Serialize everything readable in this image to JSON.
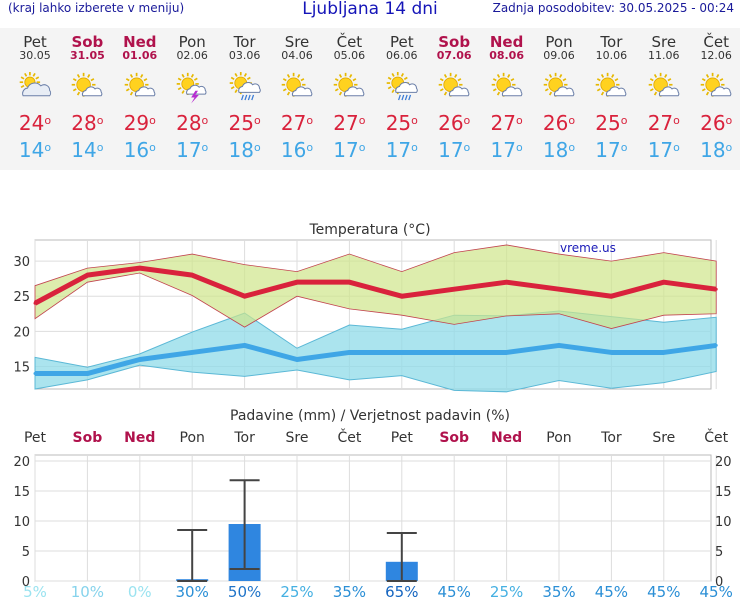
{
  "header": {
    "left_note": "(kraj lahko izberete v meniju)",
    "title": "Ljubljana 14 dni",
    "updated": "Zadnja posodobitev: 30.05.2025 - 00:24"
  },
  "days": [
    {
      "name": "Pet",
      "date": "30.05",
      "weekend": false,
      "icon": "partly-cloudy-icon",
      "max": "24",
      "min": "14"
    },
    {
      "name": "Sob",
      "date": "31.05",
      "weekend": true,
      "icon": "sun-cloud-icon",
      "max": "28",
      "min": "14"
    },
    {
      "name": "Ned",
      "date": "01.06",
      "weekend": true,
      "icon": "sun-cloud-icon",
      "max": "29",
      "min": "16"
    },
    {
      "name": "Pon",
      "date": "02.06",
      "weekend": false,
      "icon": "thunderstorm-icon",
      "max": "28",
      "min": "17"
    },
    {
      "name": "Tor",
      "date": "03.06",
      "weekend": false,
      "icon": "sun-rain-icon",
      "max": "25",
      "min": "18"
    },
    {
      "name": "Sre",
      "date": "04.06",
      "weekend": false,
      "icon": "sun-cloud-icon",
      "max": "27",
      "min": "16"
    },
    {
      "name": "Čet",
      "date": "05.06",
      "weekend": false,
      "icon": "sun-cloud-icon",
      "max": "27",
      "min": "17"
    },
    {
      "name": "Pet",
      "date": "06.06",
      "weekend": false,
      "icon": "sun-rain-icon",
      "max": "25",
      "min": "17"
    },
    {
      "name": "Sob",
      "date": "07.06",
      "weekend": true,
      "icon": "sun-cloud-icon",
      "max": "26",
      "min": "17"
    },
    {
      "name": "Ned",
      "date": "08.06",
      "weekend": true,
      "icon": "sun-cloud-icon",
      "max": "27",
      "min": "17"
    },
    {
      "name": "Pon",
      "date": "09.06",
      "weekend": false,
      "icon": "sun-cloud-icon",
      "max": "26",
      "min": "18"
    },
    {
      "name": "Tor",
      "date": "10.06",
      "weekend": false,
      "icon": "sun-cloud-icon",
      "max": "25",
      "min": "17"
    },
    {
      "name": "Sre",
      "date": "11.06",
      "weekend": false,
      "icon": "sun-cloud-icon",
      "max": "27",
      "min": "17"
    },
    {
      "name": "Čet",
      "date": "12.06",
      "weekend": false,
      "icon": "sun-cloud-icon",
      "max": "26",
      "min": "18"
    }
  ],
  "degree_symbol": "o",
  "colors": {
    "max_temp": "#d9223c",
    "min_temp": "#3fa6e6",
    "max_band": "#cfe68a",
    "min_band": "#8fdbe8",
    "precip_bar": "#2f86e0",
    "weekend": "#b0124c"
  },
  "chart_data": [
    {
      "type": "line",
      "title": "Temperatura (°C)",
      "watermark": "vreme.us",
      "x": [
        "30.05",
        "31.05",
        "01.06",
        "02.06",
        "03.06",
        "04.06",
        "05.06",
        "06.06",
        "07.06",
        "08.06",
        "09.06",
        "10.06",
        "11.06",
        "12.06"
      ],
      "ylim": [
        11.8,
        33
      ],
      "yticks": [
        "15",
        "20",
        "25",
        "30"
      ],
      "grid": true,
      "series": [
        {
          "name": "max",
          "values": [
            24,
            28,
            29,
            28,
            25,
            27,
            27,
            25,
            26,
            27,
            26,
            25,
            27,
            26
          ]
        },
        {
          "name": "min",
          "values": [
            14,
            14,
            16,
            17,
            18,
            16,
            17,
            17,
            17,
            17,
            18,
            17,
            17,
            18
          ]
        },
        {
          "name": "max range high",
          "values": [
            26.5,
            29,
            29.8,
            31,
            29.5,
            28.5,
            31,
            28.5,
            31.2,
            32.3,
            31,
            30,
            31.2,
            30
          ]
        },
        {
          "name": "max range low",
          "values": [
            21.8,
            27,
            28.3,
            25.1,
            20.6,
            25,
            23.2,
            22.3,
            21,
            22.2,
            22.5,
            20.4,
            22.3,
            22.5
          ]
        },
        {
          "name": "min range high",
          "values": [
            16.3,
            14.9,
            16.8,
            19.9,
            22.6,
            17.6,
            20.9,
            20.3,
            22.3,
            22.2,
            22.9,
            22.1,
            21.3,
            22
          ]
        },
        {
          "name": "min range low",
          "values": [
            11.8,
            13.1,
            15.2,
            14.2,
            13.6,
            14.5,
            13.1,
            13.7,
            11.6,
            11.4,
            13,
            11.9,
            12.7,
            14.3
          ]
        }
      ]
    },
    {
      "type": "bar",
      "title": "Padavine (mm) / Verjetnost padavin (%)",
      "categories": [
        "Pet",
        "Sob",
        "Ned",
        "Pon",
        "Tor",
        "Sre",
        "Čet",
        "Pet",
        "Sob",
        "Ned",
        "Pon",
        "Tor",
        "Sre",
        "Čet"
      ],
      "weekend": [
        false,
        true,
        true,
        false,
        false,
        false,
        false,
        false,
        true,
        true,
        false,
        false,
        false,
        false
      ],
      "ylim": [
        0,
        21
      ],
      "yticks": [
        "0",
        "5",
        "10",
        "15",
        "20"
      ],
      "values": [
        0,
        0,
        0,
        0.3,
        9.5,
        0,
        0,
        3.2,
        0,
        0,
        0,
        0,
        0,
        0
      ],
      "range_low": [
        null,
        null,
        null,
        0,
        2,
        null,
        null,
        0,
        null,
        null,
        null,
        null,
        null,
        null
      ],
      "range_high": [
        null,
        null,
        null,
        8.5,
        16.8,
        null,
        null,
        8,
        null,
        null,
        null,
        null,
        null,
        null
      ],
      "probability": [
        "5%",
        "10%",
        "0%",
        "30%",
        "50%",
        "25%",
        "35%",
        "65%",
        "45%",
        "25%",
        "35%",
        "45%",
        "45%",
        "45%"
      ],
      "probability_values": [
        5,
        10,
        0,
        30,
        50,
        25,
        35,
        65,
        45,
        25,
        35,
        45,
        45,
        45
      ]
    }
  ]
}
